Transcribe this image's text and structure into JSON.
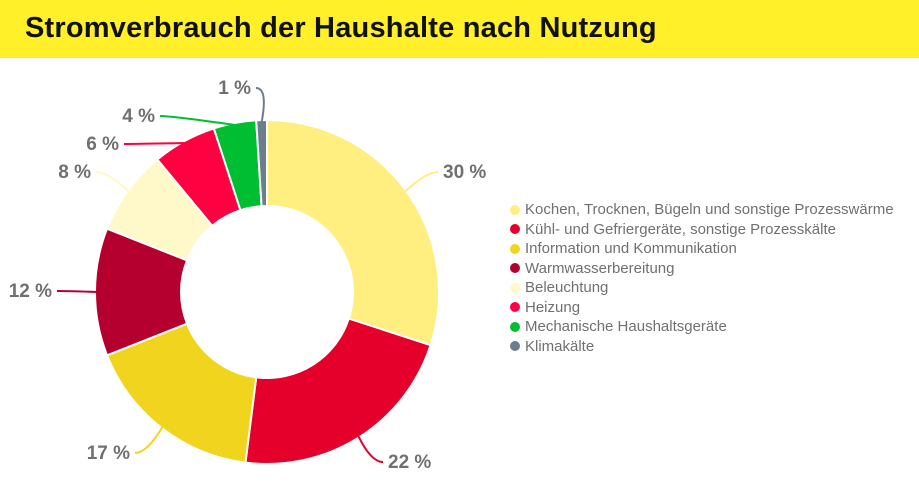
{
  "title": "Stromverbrauch der Haushalte nach Nutzung",
  "chart_data": {
    "type": "pie",
    "variant": "donut",
    "title": "Stromverbrauch der Haushalte nach Nutzung",
    "legend_position": "right",
    "categories": [
      "Kochen, Trocknen, Bügeln und sonstige Prozesswärme",
      "Kühl- und Gefriergeräte, sonstige Prozesskälte",
      "Information und Kommunikation",
      "Warmwasserbereitung",
      "Beleuchtung",
      "Heizung",
      "Mechanische Haushaltsgeräte",
      "Klimakälte"
    ],
    "values": [
      30,
      22,
      17,
      12,
      8,
      6,
      4,
      1
    ],
    "data_labels": [
      "30 %",
      "22 %",
      "17 %",
      "12 %",
      "8 %",
      "6 %",
      "4 %",
      "1 %"
    ],
    "colors": [
      "#FFEE80",
      "#E4002B",
      "#F0D41E",
      "#B5002F",
      "#FFF8C8",
      "#FF0040",
      "#00BE32",
      "#6B7E8C"
    ],
    "unit": "%"
  }
}
